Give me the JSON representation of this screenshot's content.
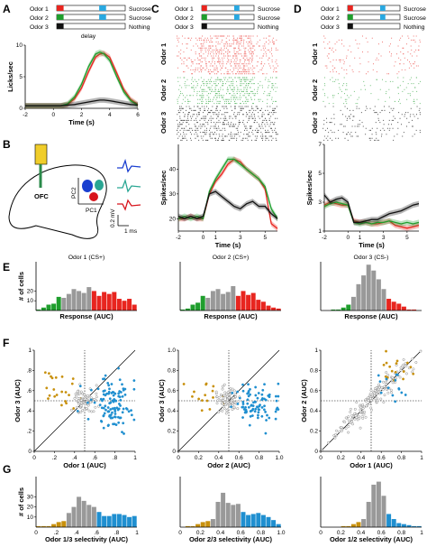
{
  "panel_letters": [
    "A",
    "B",
    "C",
    "D",
    "E",
    "F",
    "G"
  ],
  "legend": {
    "rows": [
      {
        "odor": "Odor 1",
        "outcome": "Sucrose",
        "color": "#e8251f",
        "fill_fraction": 0.62
      },
      {
        "odor": "Odor 2",
        "outcome": "Sucrose",
        "color": "#1f9e2d",
        "fill_fraction": 0.62
      },
      {
        "odor": "Odor 3",
        "outcome": "Nothing",
        "color": "#111111",
        "fill_fraction": 0.25
      }
    ],
    "delay_label": "delay",
    "reward_color": "#29a8e0"
  },
  "panel_b": {
    "ofc_label": "OFC",
    "pc1": "PC1",
    "pc2": "PC2",
    "mv": "0.2 mV",
    "ms": "1 ms",
    "colors": [
      "#1a3fd0",
      "#2aa693",
      "#d8141c"
    ]
  },
  "raster_row_labels": [
    "Odor 1",
    "Odor 2",
    "Odor 3"
  ],
  "chart_data": [
    {
      "id": "A",
      "type": "line",
      "xlabel": "Time (s)",
      "ylabel": "Licks/sec",
      "xlim": [
        -2,
        6
      ],
      "ylim": [
        0,
        10
      ],
      "xticks": [
        -2,
        0,
        2,
        4,
        6
      ],
      "yticks": [
        0,
        5,
        10
      ],
      "x": [
        -2,
        -1.5,
        -1,
        -0.5,
        0,
        0.5,
        1,
        1.5,
        2,
        2.5,
        3,
        3.3,
        3.6,
        4,
        4.5,
        5,
        5.5,
        6
      ],
      "series": [
        {
          "color": "#e8251f",
          "values": [
            0.4,
            0.4,
            0.4,
            0.4,
            0.4,
            0.4,
            0.6,
            1.5,
            3.2,
            5.8,
            8.1,
            8.6,
            8.7,
            8.1,
            5.6,
            3.0,
            1.4,
            0.6
          ]
        },
        {
          "color": "#1f9e2d",
          "values": [
            0.4,
            0.4,
            0.4,
            0.4,
            0.4,
            0.4,
            0.7,
            1.8,
            3.8,
            6.6,
            8.6,
            8.9,
            8.6,
            7.6,
            5.0,
            2.6,
            1.2,
            0.5
          ]
        },
        {
          "color": "#111111",
          "values": [
            0.4,
            0.4,
            0.4,
            0.4,
            0.4,
            0.4,
            0.5,
            0.6,
            0.8,
            1.0,
            1.2,
            1.3,
            1.3,
            1.2,
            1.0,
            0.8,
            0.6,
            0.5
          ]
        }
      ]
    },
    {
      "id": "C",
      "type": "line",
      "xlabel": "Time (s)",
      "ylabel": "Spikes/sec",
      "xlim": [
        -2,
        6
      ],
      "ylim": [
        15,
        50
      ],
      "xticks": [
        -2,
        0,
        1,
        3,
        5
      ],
      "yticks": [
        20,
        30,
        40
      ],
      "x": [
        -2,
        -1.5,
        -1,
        -0.5,
        0,
        0.5,
        1,
        1.5,
        2,
        2.5,
        3,
        3.5,
        4,
        4.5,
        5,
        5.5,
        6
      ],
      "series": [
        {
          "color": "#e8251f",
          "values": [
            20,
            20,
            21,
            20,
            20,
            30,
            35,
            38,
            42,
            44,
            43,
            40,
            38,
            36,
            32,
            18,
            16
          ]
        },
        {
          "color": "#1f9e2d",
          "values": [
            20,
            21,
            20,
            21,
            20,
            31,
            36,
            40,
            44,
            44,
            42,
            40,
            38,
            36,
            33,
            24,
            20
          ]
        },
        {
          "color": "#111111",
          "values": [
            21,
            20,
            21,
            20,
            21,
            30,
            31,
            29,
            27,
            25,
            24,
            26,
            27,
            25,
            25,
            22,
            20
          ]
        }
      ]
    },
    {
      "id": "D",
      "type": "line",
      "xlabel": "Time (s)",
      "ylabel": "Spikes/sec",
      "xlim": [
        -2,
        6
      ],
      "ylim": [
        1,
        7
      ],
      "xticks": [
        -2,
        0,
        1,
        3,
        5
      ],
      "yticks": [
        1,
        3,
        5,
        7
      ],
      "x": [
        -2,
        -1.5,
        -1,
        -0.5,
        0,
        0.5,
        1,
        1.5,
        2,
        2.5,
        3,
        3.5,
        4,
        4.5,
        5,
        5.5,
        6
      ],
      "series": [
        {
          "color": "#e8251f",
          "values": [
            2.8,
            3.0,
            2.9,
            2.8,
            2.8,
            1.7,
            1.6,
            1.6,
            1.5,
            1.5,
            1.6,
            1.7,
            1.4,
            1.3,
            1.2,
            1.3,
            1.4
          ]
        },
        {
          "color": "#1f9e2d",
          "values": [
            2.7,
            2.9,
            3.0,
            2.9,
            2.8,
            1.6,
            1.5,
            1.6,
            1.5,
            1.6,
            1.6,
            1.7,
            1.6,
            1.5,
            1.6,
            1.5,
            1.6
          ]
        },
        {
          "color": "#111111",
          "values": [
            3.5,
            3.0,
            3.2,
            3.3,
            3.0,
            1.6,
            1.6,
            1.7,
            1.8,
            1.8,
            2.0,
            2.2,
            2.3,
            2.4,
            2.6,
            2.8,
            2.9
          ]
        }
      ]
    },
    {
      "id": "E1",
      "type": "bar",
      "title": "Odor 1 (CS+)",
      "xlabel": "Response (AUC)",
      "ylabel": "# of cells",
      "ylim": [
        0,
        50
      ],
      "yticks": [
        10,
        20
      ],
      "values": [
        1,
        3,
        6,
        7,
        14,
        13,
        17,
        22,
        20,
        18,
        24,
        20,
        15,
        19,
        17,
        19,
        12,
        10,
        12,
        6
      ],
      "colors": [
        "g",
        "g",
        "g",
        "g",
        "g",
        "n",
        "n",
        "n",
        "n",
        "n",
        "n",
        "r",
        "r",
        "r",
        "r",
        "r",
        "r",
        "r",
        "r",
        "r"
      ]
    },
    {
      "id": "E2",
      "type": "bar",
      "title": "Odor 2 (CS+)",
      "xlabel": "Response (AUC)",
      "ylabel": "",
      "ylim": [
        0,
        50
      ],
      "values": [
        1,
        2,
        6,
        8,
        15,
        13,
        20,
        22,
        17,
        19,
        25,
        15,
        20,
        16,
        18,
        11,
        9,
        5,
        3,
        2
      ],
      "colors": [
        "g",
        "g",
        "g",
        "g",
        "g",
        "n",
        "n",
        "n",
        "n",
        "n",
        "n",
        "r",
        "r",
        "r",
        "r",
        "r",
        "r",
        "r",
        "r",
        "r"
      ]
    },
    {
      "id": "E3",
      "type": "bar",
      "title": "Odor 3 (CS-)",
      "xlabel": "Response (AUC)",
      "ylabel": "",
      "ylim": [
        0,
        50
      ],
      "values": [
        0,
        0,
        1,
        1,
        3,
        6,
        14,
        27,
        36,
        47,
        41,
        32,
        22,
        12,
        9,
        7,
        4,
        1,
        1,
        0
      ],
      "colors": [
        "g",
        "g",
        "g",
        "g",
        "g",
        "g",
        "n",
        "n",
        "n",
        "n",
        "n",
        "n",
        "n",
        "r",
        "r",
        "r",
        "r",
        "r",
        "r",
        "r"
      ]
    },
    {
      "id": "F1",
      "type": "scatter",
      "xlabel": "Odor 1 (AUC)",
      "ylabel": "Odor 3 (AUC)",
      "xlim": [
        0,
        1
      ],
      "ylim": [
        0,
        1
      ],
      "xticks": [
        "0",
        ".2",
        ".4",
        ".6",
        ".8",
        "1"
      ],
      "yticks": [
        "0",
        ".2",
        ".4",
        ".6",
        ".8",
        "1"
      ],
      "groups": [
        {
          "color": "#c8900c",
          "n": 22,
          "cx": 0.26,
          "cy": 0.58,
          "sx": 0.09,
          "sy": 0.09
        },
        {
          "color": "#888888",
          "n": 80,
          "cx": 0.5,
          "cy": 0.5,
          "sx": 0.06,
          "sy": 0.06
        },
        {
          "color": "#1f8fd0",
          "n": 110,
          "cx": 0.78,
          "cy": 0.47,
          "sx": 0.11,
          "sy": 0.12
        }
      ]
    },
    {
      "id": "F2",
      "type": "scatter",
      "xlabel": "Odor 2 (AUC)",
      "ylabel": "Odor 3 (AUC)",
      "xlim": [
        0,
        1
      ],
      "ylim": [
        0,
        1
      ],
      "xticks": [
        "0",
        "0.2",
        "0.4",
        "0.6",
        "0.8",
        "1.0"
      ],
      "yticks": [
        "0",
        "0.2",
        "0.4",
        "0.6",
        "0.8",
        "1.0"
      ],
      "groups": [
        {
          "color": "#c8900c",
          "n": 16,
          "cx": 0.25,
          "cy": 0.57,
          "sx": 0.09,
          "sy": 0.08
        },
        {
          "color": "#888888",
          "n": 85,
          "cx": 0.5,
          "cy": 0.5,
          "sx": 0.06,
          "sy": 0.06
        },
        {
          "color": "#1f8fd0",
          "n": 85,
          "cx": 0.76,
          "cy": 0.46,
          "sx": 0.11,
          "sy": 0.11
        }
      ]
    },
    {
      "id": "F3",
      "type": "scatter",
      "xlabel": "Odor 1 (AUC)",
      "ylabel": "Odor 2 (AUC)",
      "xlim": [
        0,
        1
      ],
      "ylim": [
        0,
        1
      ],
      "xticks": [
        "0",
        "0.2",
        "0.4",
        "0.6",
        "0.8",
        "1"
      ],
      "yticks": [
        "0",
        "0.2",
        "0.4",
        "0.6",
        "0.8",
        "1"
      ],
      "groups": [
        {
          "color": "#888888",
          "n": 170,
          "cx": 0.52,
          "cy": 0.52,
          "sx": 0.18,
          "sy": 0.18,
          "diag": true
        },
        {
          "color": "#c8900c",
          "n": 16,
          "cx": 0.74,
          "cy": 0.8,
          "sx": 0.09,
          "sy": 0.09
        },
        {
          "color": "#1f8fd0",
          "n": 14,
          "cx": 0.72,
          "cy": 0.62,
          "sx": 0.08,
          "sy": 0.08
        }
      ]
    },
    {
      "id": "G1",
      "type": "bar",
      "xlabel": "Odor 1/3 selectivity (AUC)",
      "ylabel": "# of cells",
      "ylim": [
        0,
        50
      ],
      "yticks": [
        10,
        20,
        30
      ],
      "xticks": [
        "0",
        ".2",
        ".4",
        ".6",
        ".8",
        "1"
      ],
      "values": [
        1,
        1,
        1,
        3,
        5,
        6,
        14,
        20,
        30,
        26,
        22,
        20,
        15,
        11,
        11,
        13,
        13,
        12,
        10,
        11
      ],
      "colors": [
        "o",
        "o",
        "o",
        "o",
        "o",
        "o",
        "n",
        "n",
        "n",
        "n",
        "n",
        "n",
        "b",
        "b",
        "b",
        "b",
        "b",
        "b",
        "b",
        "b"
      ]
    },
    {
      "id": "G2",
      "type": "bar",
      "xlabel": "Odor 2/3 selectivity (AUC)",
      "ylabel": "",
      "ylim": [
        0,
        50
      ],
      "xticks": [
        "0",
        "0.2",
        "0.4",
        "0.6",
        "0.8",
        "1.0"
      ],
      "values": [
        0,
        1,
        1,
        3,
        5,
        6,
        8,
        25,
        34,
        24,
        22,
        23,
        15,
        12,
        13,
        14,
        12,
        10,
        7,
        3
      ],
      "colors": [
        "o",
        "o",
        "o",
        "o",
        "o",
        "o",
        "n",
        "n",
        "n",
        "n",
        "n",
        "n",
        "b",
        "b",
        "b",
        "b",
        "b",
        "b",
        "b",
        "b"
      ]
    },
    {
      "id": "G3",
      "type": "bar",
      "xlabel": "Odor 1/2 selectivity (AUC)",
      "ylabel": "",
      "ylim": [
        0,
        50
      ],
      "xticks": [
        "0",
        "0.2",
        "0.4",
        "0.6",
        "0.8",
        "1"
      ],
      "values": [
        0,
        0,
        0,
        0,
        1,
        1,
        3,
        5,
        8,
        25,
        42,
        45,
        31,
        13,
        8,
        4,
        3,
        2,
        1,
        1
      ],
      "colors": [
        "o",
        "o",
        "o",
        "o",
        "o",
        "o",
        "o",
        "o",
        "n",
        "n",
        "n",
        "n",
        "n",
        "b",
        "b",
        "b",
        "b",
        "b",
        "b",
        "b"
      ]
    }
  ]
}
